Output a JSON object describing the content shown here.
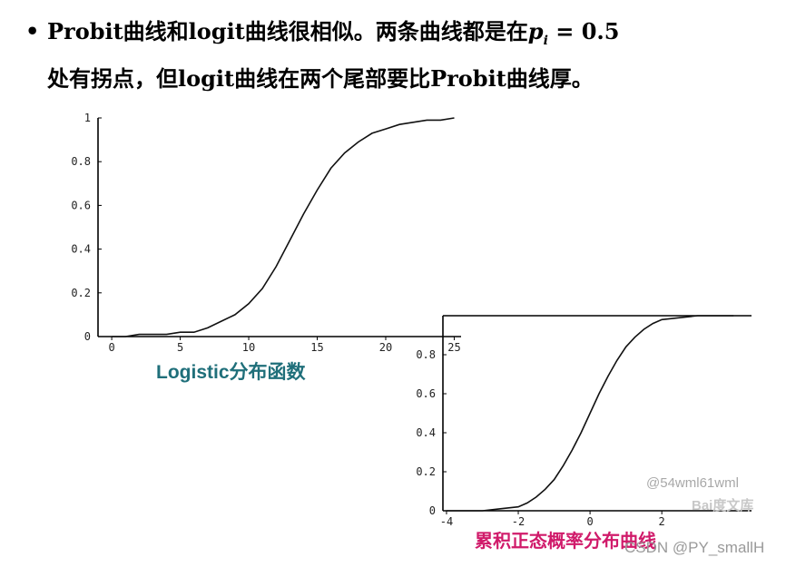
{
  "header": {
    "bullet": "•",
    "line1_pre": "Probit曲线和logit曲线很相似。两条曲线都是在",
    "p_symbol": "p",
    "p_subscript": "i",
    "line1_post": " = 0.5",
    "line2": "处有拐点，但logit曲线在两个尾部要比Probit曲线厚。"
  },
  "captions": {
    "logistic": "Logistic分布函数",
    "normal": "累积正态概率分布曲线"
  },
  "watermarks": {
    "user": "@54wml61wml",
    "baidu": "Bai度文库",
    "csdn": "CSDN @PY_smallH"
  },
  "chart_data": [
    {
      "type": "line",
      "title": "",
      "xlabel": "",
      "ylabel": "",
      "xlim": [
        -1,
        25.5
      ],
      "ylim": [
        0,
        1
      ],
      "x_ticks": [
        0,
        5,
        10,
        15,
        20,
        25
      ],
      "y_ticks": [
        0,
        0.2,
        0.4,
        0.6,
        0.8,
        1
      ],
      "x_tick_labels": [
        "0",
        "5",
        "10",
        "15",
        "20",
        "25"
      ],
      "y_tick_labels": [
        "0",
        "0.2",
        "0.4",
        "0.6",
        "0.8",
        "1"
      ],
      "grid": false,
      "x": [
        0,
        1,
        2,
        3,
        4,
        5,
        6,
        7,
        8,
        9,
        10,
        11,
        12,
        13,
        14,
        15,
        16,
        17,
        18,
        19,
        20,
        21,
        22,
        23,
        24,
        25
      ],
      "y": [
        0.0,
        0.0,
        0.01,
        0.01,
        0.01,
        0.02,
        0.02,
        0.04,
        0.07,
        0.1,
        0.15,
        0.22,
        0.32,
        0.44,
        0.56,
        0.67,
        0.77,
        0.84,
        0.89,
        0.93,
        0.95,
        0.97,
        0.98,
        0.99,
        0.99,
        1.0
      ]
    },
    {
      "type": "line",
      "title": "",
      "xlabel": "",
      "ylabel": "",
      "xlim": [
        -4.1,
        4.5
      ],
      "ylim": [
        0,
        1
      ],
      "x_ticks": [
        -4,
        -2,
        0,
        2
      ],
      "y_ticks": [
        0,
        0.2,
        0.4,
        0.6,
        0.8
      ],
      "x_tick_labels": [
        "-4",
        "-2",
        "0",
        "2"
      ],
      "y_tick_labels": [
        "0",
        "0.2",
        "0.4",
        "0.6",
        "0.8"
      ],
      "grid": false,
      "x": [
        -4,
        -3.5,
        -3,
        -2.5,
        -2,
        -1.75,
        -1.5,
        -1.25,
        -1,
        -0.75,
        -0.5,
        -0.25,
        0,
        0.25,
        0.5,
        0.75,
        1,
        1.25,
        1.5,
        1.75,
        2,
        2.5,
        3,
        3.5,
        4
      ],
      "y": [
        0.0,
        0.0,
        0.0,
        0.01,
        0.02,
        0.04,
        0.07,
        0.11,
        0.16,
        0.23,
        0.31,
        0.4,
        0.5,
        0.6,
        0.69,
        0.77,
        0.84,
        0.89,
        0.93,
        0.96,
        0.98,
        0.99,
        1.0,
        1.0,
        1.0
      ]
    }
  ]
}
